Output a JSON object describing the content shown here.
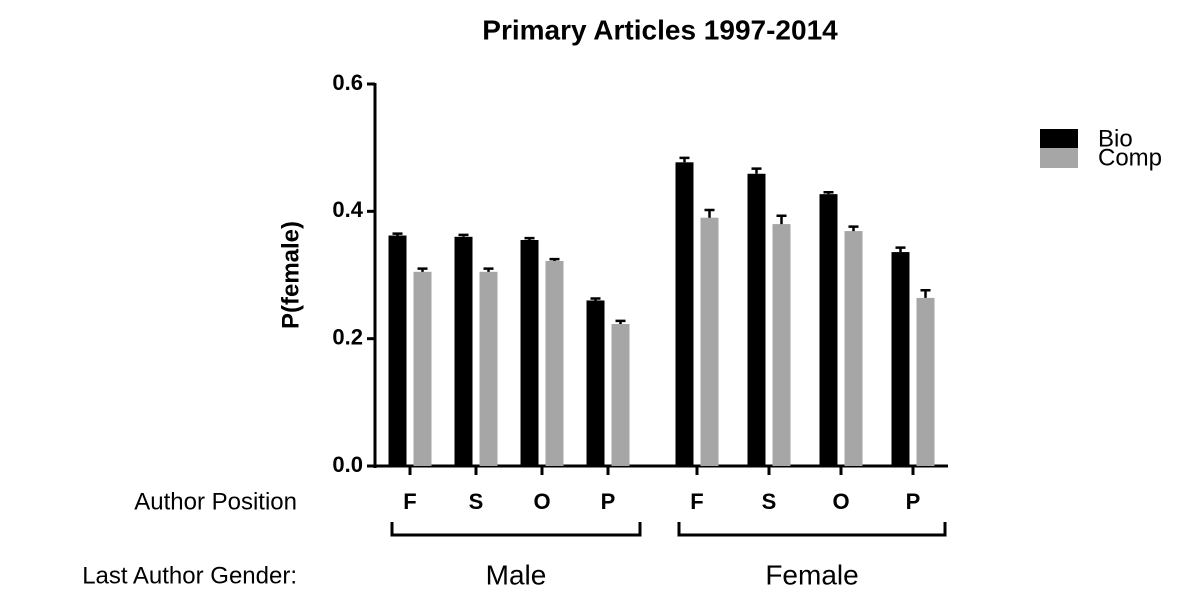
{
  "chart_data": {
    "type": "bar",
    "title": "Primary Articles 1997-2014",
    "y_label": "P(female)",
    "x_label": "Author Position",
    "group_label": "Last Author Gender:",
    "categories": [
      "F",
      "S",
      "O",
      "P",
      "F",
      "S",
      "O",
      "P"
    ],
    "groups": [
      "Male",
      "Female"
    ],
    "series": [
      {
        "name": "Bio",
        "color": "#000000",
        "values": [
          0.362,
          0.36,
          0.355,
          0.26,
          0.477,
          0.459,
          0.427,
          0.336
        ],
        "errors": [
          0.003,
          0.003,
          0.003,
          0.003,
          0.007,
          0.008,
          0.003,
          0.007
        ]
      },
      {
        "name": "Comp",
        "color": "#a6a6a6",
        "values": [
          0.305,
          0.305,
          0.322,
          0.223,
          0.39,
          0.38,
          0.369,
          0.264
        ],
        "errors": [
          0.005,
          0.005,
          0.003,
          0.005,
          0.012,
          0.013,
          0.007,
          0.012
        ]
      }
    ],
    "ylim": [
      0,
      0.6
    ],
    "yticks": [
      {
        "value": 0,
        "label": "0.0"
      },
      {
        "value": 0.2,
        "label": "0.2"
      },
      {
        "value": 0.4,
        "label": "0.4"
      },
      {
        "value": 0.6,
        "label": "0.6"
      }
    ],
    "legend": "top-right",
    "grid": false
  }
}
